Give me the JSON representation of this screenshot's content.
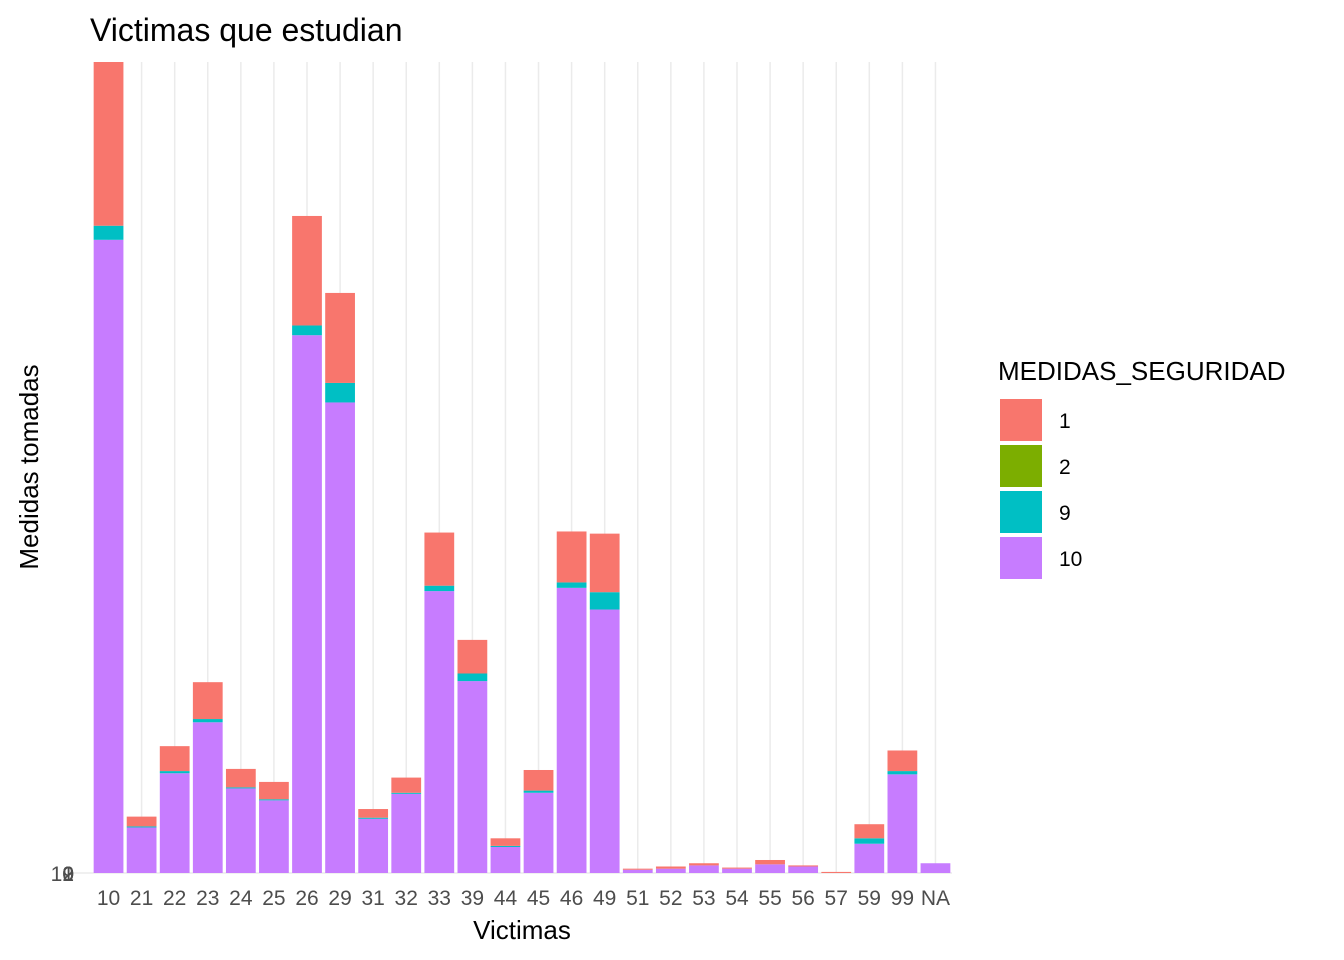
{
  "chart_data": {
    "type": "bar",
    "stacked": true,
    "title": "Victimas que estudian",
    "xlabel": "Victimas",
    "ylabel": "Medidas tomadas",
    "categories": [
      "10",
      "21",
      "22",
      "23",
      "24",
      "25",
      "26",
      "29",
      "31",
      "32",
      "33",
      "39",
      "44",
      "45",
      "46",
      "49",
      "51",
      "52",
      "53",
      "54",
      "55",
      "56",
      "57",
      "59",
      "99",
      "NA"
    ],
    "series": [
      {
        "name": "10",
        "color": "#C77CFF",
        "values": [
          584,
          42,
          92,
          139,
          78,
          67,
          496,
          434,
          50,
          73,
          260,
          177,
          24,
          74,
          263,
          243,
          3,
          4,
          7,
          4,
          8,
          6,
          0,
          27,
          91,
          9
        ]
      },
      {
        "name": "9",
        "color": "#00BFC4",
        "values": [
          13,
          1,
          2,
          3,
          1,
          1,
          9,
          18,
          1,
          1,
          5,
          7,
          1,
          2,
          5,
          16,
          0,
          0,
          0,
          0,
          0,
          0,
          0,
          5,
          3,
          0
        ]
      },
      {
        "name": "2",
        "color": "#7CAE00",
        "values": [
          0,
          0,
          0,
          0,
          0,
          0,
          0,
          0,
          0,
          0,
          0,
          0,
          0,
          0,
          0,
          0,
          0,
          0,
          0,
          0,
          0,
          0,
          0,
          0,
          0,
          0
        ]
      },
      {
        "name": "1",
        "color": "#F8766D",
        "values": [
          151,
          9,
          23,
          34,
          17,
          16,
          101,
          83,
          8,
          14,
          49,
          31,
          7,
          19,
          47,
          54,
          1,
          2,
          2,
          1,
          4,
          1,
          1,
          13,
          19,
          0
        ]
      }
    ],
    "legend": {
      "title": "MEDIDAS_SEGURIDAD",
      "placement": "right",
      "entries": [
        {
          "label": "1",
          "color": "#F8766D"
        },
        {
          "label": "2",
          "color": "#7CAE00"
        },
        {
          "label": "9",
          "color": "#00BFC4"
        },
        {
          "label": "10",
          "color": "#C77CFF"
        }
      ]
    },
    "y_tick_labels": [
      "0",
      "1",
      "2",
      "9",
      "10"
    ],
    "ylim": [
      0,
      748
    ],
    "grid": "vertical-major"
  }
}
